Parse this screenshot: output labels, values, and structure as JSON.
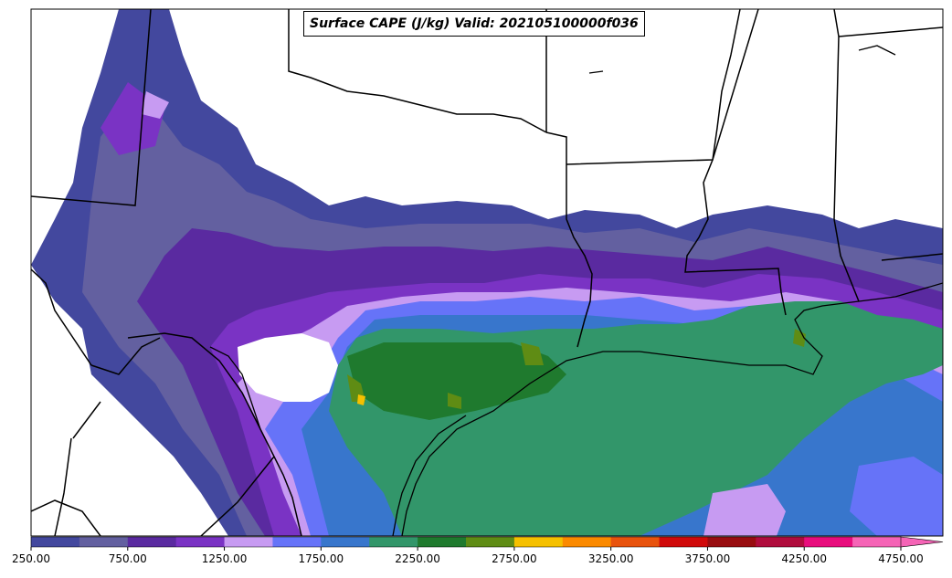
{
  "title": "Surface CAPE (J/kg) Valid: 202105100000f036",
  "colorbar": {
    "colors": [
      "#43489e",
      "#6360a0",
      "#5a2aa0",
      "#7a33c4",
      "#c79bf2",
      "#6673f8",
      "#3876cc",
      "#32966a",
      "#1f7a2e",
      "#5f8c14",
      "#f5c000",
      "#fb8a00",
      "#e8530d",
      "#d00a0a",
      "#980d10",
      "#b00c3d",
      "#e80d7d",
      "#f564b6"
    ],
    "tick_labels": [
      "250.00",
      "750.00",
      "1250.00",
      "1750.00",
      "2250.00",
      "2750.00",
      "3250.00",
      "3750.00",
      "4250.00",
      "4750.00"
    ],
    "extend": "max"
  }
}
